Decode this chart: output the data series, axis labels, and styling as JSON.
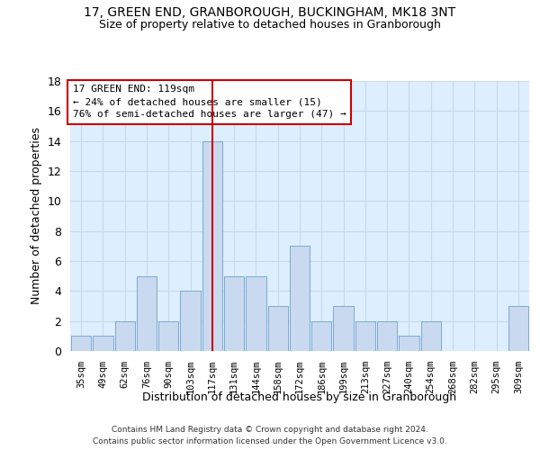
{
  "title1": "17, GREEN END, GRANBOROUGH, BUCKINGHAM, MK18 3NT",
  "title2": "Size of property relative to detached houses in Granborough",
  "xlabel": "Distribution of detached houses by size in Granborough",
  "ylabel": "Number of detached properties",
  "categories": [
    "35sqm",
    "49sqm",
    "62sqm",
    "76sqm",
    "90sqm",
    "103sqm",
    "117sqm",
    "131sqm",
    "144sqm",
    "158sqm",
    "172sqm",
    "186sqm",
    "199sqm",
    "213sqm",
    "227sqm",
    "240sqm",
    "254sqm",
    "268sqm",
    "282sqm",
    "295sqm",
    "309sqm"
  ],
  "values": [
    1,
    1,
    2,
    5,
    2,
    4,
    14,
    5,
    5,
    3,
    7,
    2,
    3,
    2,
    2,
    1,
    2,
    0,
    0,
    0,
    3
  ],
  "bar_color": "#c9d9f0",
  "bar_edge_color": "#7aaad0",
  "vline_x_index": 6,
  "vline_color": "#cc0000",
  "annotation_lines": [
    "17 GREEN END: 119sqm",
    "← 24% of detached houses are smaller (15)",
    "76% of semi-detached houses are larger (47) →"
  ],
  "annotation_box_color": "#ffffff",
  "annotation_box_edge_color": "#cc0000",
  "ylim": [
    0,
    18
  ],
  "yticks": [
    0,
    2,
    4,
    6,
    8,
    10,
    12,
    14,
    16,
    18
  ],
  "grid_color": "#c8daea",
  "bg_color": "#ddeeff",
  "footer1": "Contains HM Land Registry data © Crown copyright and database right 2024.",
  "footer2": "Contains public sector information licensed under the Open Government Licence v3.0."
}
